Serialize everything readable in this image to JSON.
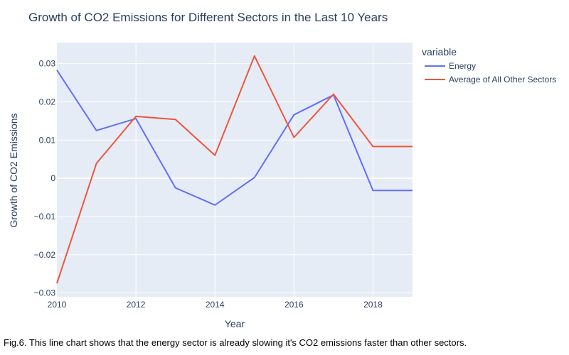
{
  "chart_data": {
    "type": "line",
    "title": "Growth of CO2 Emissions for Different Sectors in the Last 10 Years",
    "xlabel": "Year",
    "ylabel": "Growth of CO2 Emissions",
    "xlim": [
      2010,
      2019
    ],
    "ylim": [
      -0.031,
      0.0355
    ],
    "x_ticks": [
      2010,
      2012,
      2014,
      2016,
      2018
    ],
    "y_ticks": [
      -0.03,
      -0.02,
      -0.01,
      0,
      0.01,
      0.02,
      0.03
    ],
    "grid": true,
    "legend": {
      "title": "variable",
      "position": "right"
    },
    "x": [
      2010,
      2011,
      2012,
      2013,
      2014,
      2015,
      2016,
      2017,
      2018,
      2019
    ],
    "series": [
      {
        "name": "Energy",
        "color": "#636efa",
        "values": [
          0.0283,
          0.0125,
          0.0156,
          -0.0025,
          -0.007,
          0.0002,
          0.0166,
          0.0218,
          -0.0032,
          -0.0032
        ]
      },
      {
        "name": "Average of All Other Sectors",
        "color": "#ef553b",
        "values": [
          -0.0275,
          0.0039,
          0.0162,
          0.0154,
          0.006,
          0.032,
          0.0107,
          0.022,
          0.0083,
          0.0083
        ]
      }
    ],
    "plot_background": "#e5ecf6"
  },
  "caption": "Fig.6. This line chart shows that the energy sector is already slowing it's CO2 emissions faster than other sectors."
}
